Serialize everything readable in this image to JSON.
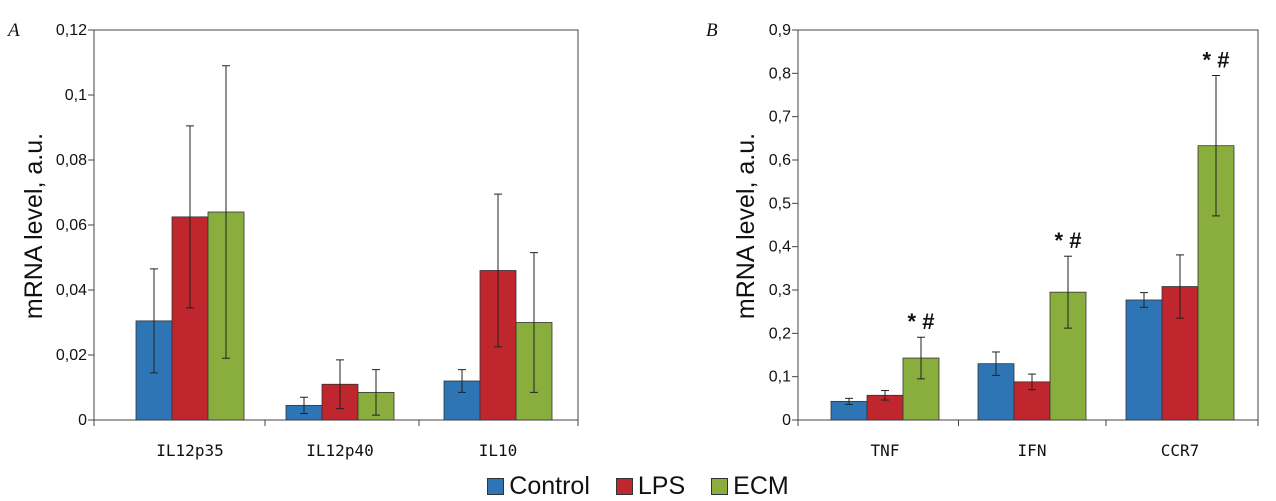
{
  "legend": [
    {
      "label": "Control",
      "color": "#2e75b6"
    },
    {
      "label": "LPS",
      "color": "#c0262d"
    },
    {
      "label": "ECM",
      "color": "#8aae3e"
    }
  ],
  "chart_data": [
    {
      "type": "bar",
      "panel": "A",
      "ylabel": "mRNA level, a.u.",
      "ylim": [
        0,
        0.12
      ],
      "yticks": [
        "0",
        "0,02",
        "0,04",
        "0,06",
        "0,08",
        "0,1",
        "0,12"
      ],
      "categories": [
        "IL12p35",
        "IL12p40",
        "IL10"
      ],
      "series": [
        {
          "name": "Control",
          "values": [
            0.0305,
            0.0045,
            0.012
          ],
          "errors": [
            0.016,
            0.0025,
            0.0035
          ]
        },
        {
          "name": "LPS",
          "values": [
            0.0625,
            0.011,
            0.046
          ],
          "errors": [
            0.028,
            0.0075,
            0.0235
          ]
        },
        {
          "name": "ECM",
          "values": [
            0.064,
            0.0085,
            0.03
          ],
          "errors": [
            0.045,
            0.007,
            0.0215
          ]
        }
      ],
      "annotations": [
        "",
        "",
        ""
      ],
      "grid": false,
      "legend_position": "bottom"
    },
    {
      "type": "bar",
      "panel": "B",
      "ylabel": "mRNA level, a.u.",
      "ylim": [
        0,
        0.9
      ],
      "yticks": [
        "0",
        "0,1",
        "0,2",
        "0,3",
        "0,4",
        "0,5",
        "0,6",
        "0,7",
        "0,8",
        "0,9"
      ],
      "categories": [
        "TNF",
        "IFN",
        "CCR7"
      ],
      "series": [
        {
          "name": "Control",
          "values": [
            0.043,
            0.13,
            0.277
          ],
          "errors": [
            0.007,
            0.027,
            0.017
          ]
        },
        {
          "name": "LPS",
          "values": [
            0.057,
            0.088,
            0.308
          ],
          "errors": [
            0.011,
            0.018,
            0.073
          ]
        },
        {
          "name": "ECM",
          "values": [
            0.143,
            0.295,
            0.633
          ],
          "errors": [
            0.048,
            0.083,
            0.162
          ]
        }
      ],
      "annotations": [
        "* #",
        "* #",
        "* #"
      ],
      "grid": false,
      "legend_position": "bottom"
    }
  ]
}
